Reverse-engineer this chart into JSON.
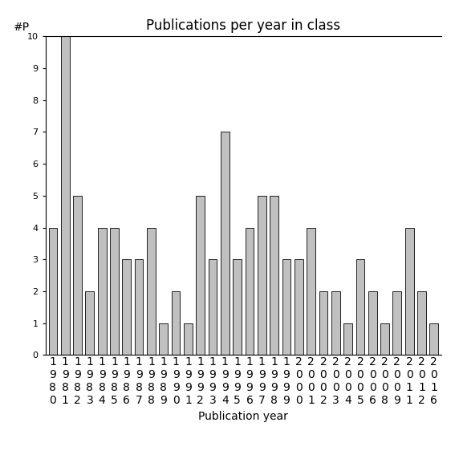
{
  "title": "Publications per year in class",
  "xlabel": "Publication year",
  "ylabel": "#P",
  "categories": [
    "1980",
    "1981",
    "1982",
    "1983",
    "1984",
    "1985",
    "1986",
    "1987",
    "1988",
    "1989",
    "1990",
    "1991",
    "1992",
    "1993",
    "1994",
    "1995",
    "1996",
    "1997",
    "1998",
    "1999",
    "2000",
    "2001",
    "2002",
    "2003",
    "2004",
    "2005",
    "2006",
    "2008",
    "2009",
    "2011",
    "2012",
    "2016"
  ],
  "values": [
    4,
    10,
    5,
    2,
    4,
    4,
    3,
    3,
    4,
    1,
    2,
    1,
    5,
    3,
    7,
    3,
    4,
    5,
    5,
    3,
    3,
    4,
    2,
    2,
    1,
    3,
    2,
    1,
    2,
    4,
    2,
    1
  ],
  "bar_color": "#c0c0c0",
  "bar_edge_color": "#000000",
  "ylim": [
    0,
    10
  ],
  "yticks": [
    0,
    1,
    2,
    3,
    4,
    5,
    6,
    7,
    8,
    9,
    10
  ],
  "bg_color": "#ffffff",
  "title_fontsize": 12,
  "label_fontsize": 10,
  "tick_fontsize": 8,
  "bar_width": 0.7
}
